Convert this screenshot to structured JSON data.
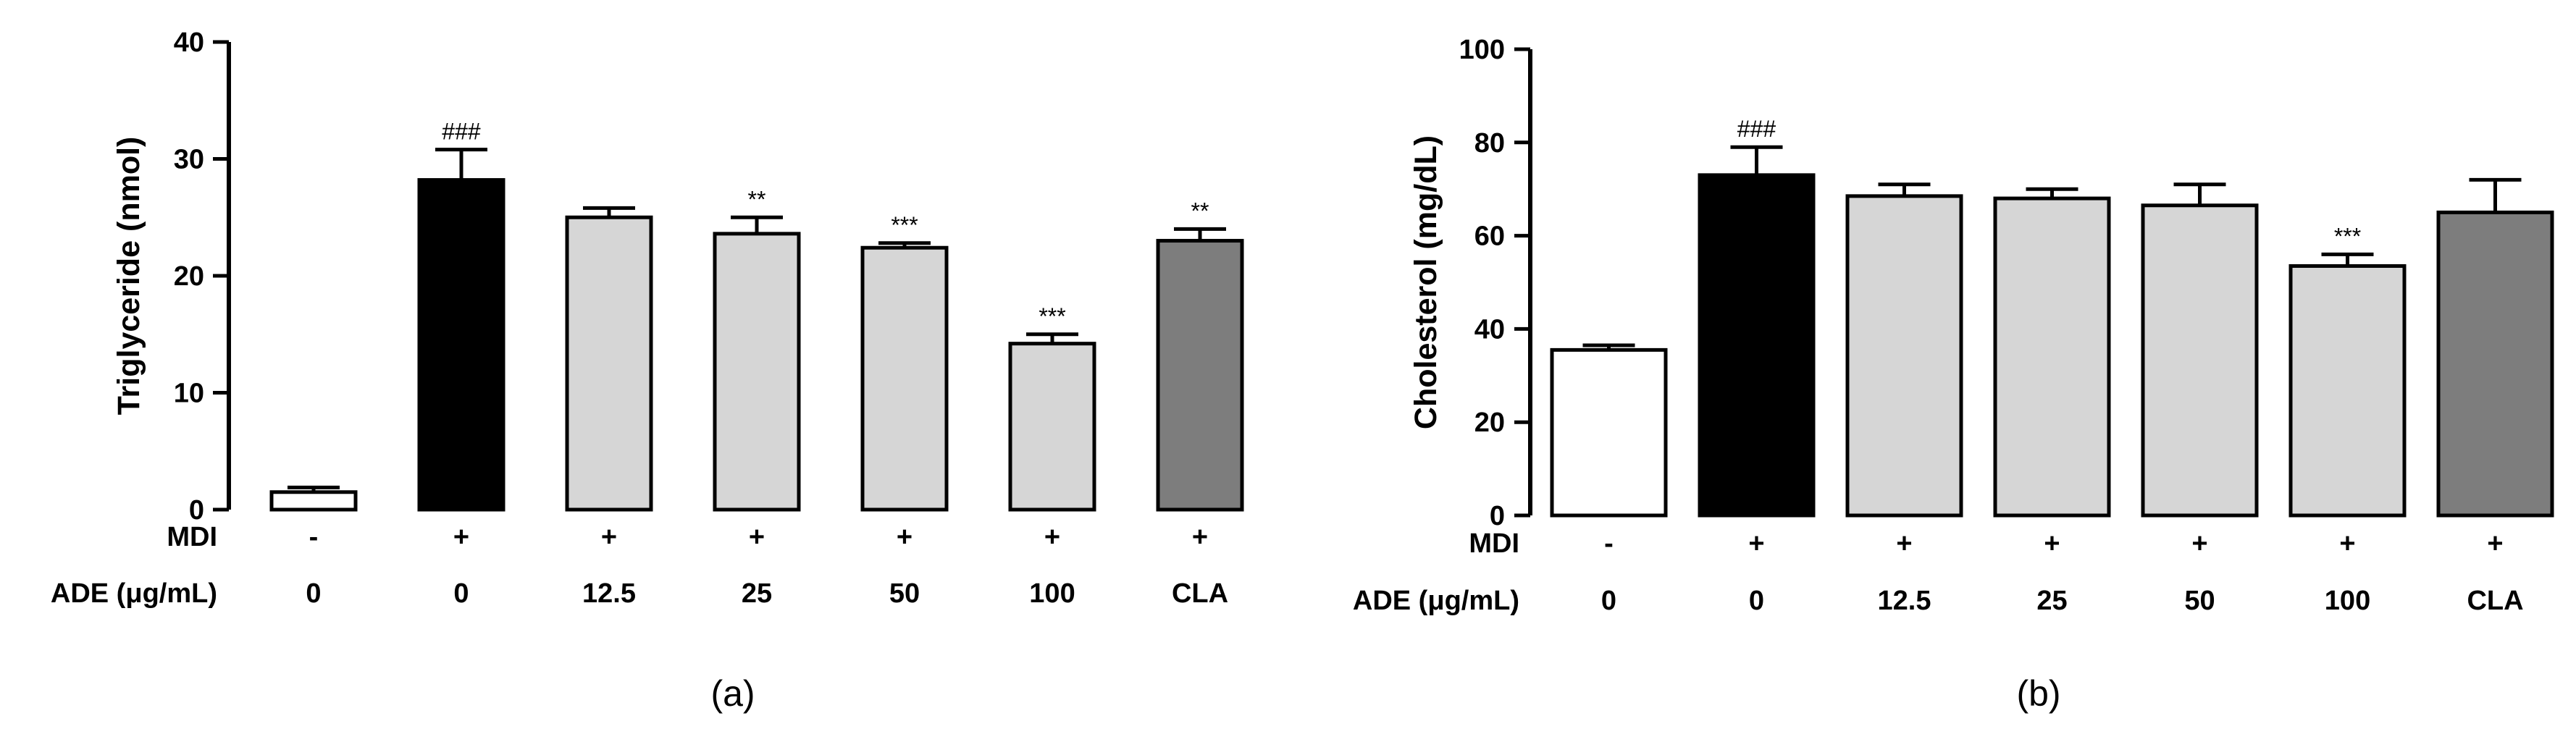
{
  "chart_data": [
    {
      "type": "bar",
      "panel_label": "(a)",
      "ylabel": "Triglyceride (nmol)",
      "ylim": [
        0,
        40
      ],
      "yticks": [
        "0",
        "10",
        "20",
        "30",
        "40"
      ],
      "categories": [
        "0",
        "0",
        "12.5",
        "25",
        "50",
        "100",
        "CLA"
      ],
      "values": [
        1.5,
        28.2,
        25.0,
        23.6,
        22.4,
        14.2,
        23.0
      ],
      "errors": [
        0.4,
        2.6,
        0.8,
        1.4,
        0.4,
        0.8,
        1.0
      ],
      "significance": [
        "",
        "###",
        "",
        "**",
        "***",
        "***",
        "**"
      ],
      "bar_colors": [
        "#ffffff",
        "#000000",
        "#d6d6d6",
        "#d6d6d6",
        "#d6d6d6",
        "#d6d6d6",
        "#7d7d7d"
      ],
      "row_labels": [
        "MDI",
        "ADE (μg/mL)"
      ],
      "mdi": [
        "-",
        "+",
        "+",
        "+",
        "+",
        "+",
        "+"
      ]
    },
    {
      "type": "bar",
      "panel_label": "(b)",
      "ylabel": "Cholesterol (mg/dL)",
      "ylim": [
        0,
        100
      ],
      "yticks": [
        "0",
        "20",
        "40",
        "60",
        "80",
        "100"
      ],
      "categories": [
        "0",
        "0",
        "12.5",
        "25",
        "50",
        "100",
        "CLA"
      ],
      "values": [
        35.5,
        73.0,
        68.5,
        68.0,
        66.5,
        53.5,
        65.0
      ],
      "errors": [
        1.0,
        6.0,
        2.5,
        2.0,
        4.5,
        2.5,
        7.0
      ],
      "significance": [
        "",
        "###",
        "",
        "",
        "",
        "***",
        ""
      ],
      "bar_colors": [
        "#ffffff",
        "#000000",
        "#d6d6d6",
        "#d6d6d6",
        "#d6d6d6",
        "#d6d6d6",
        "#7d7d7d"
      ],
      "row_labels": [
        "MDI",
        "ADE (μg/mL)"
      ],
      "mdi": [
        "-",
        "+",
        "+",
        "+",
        "+",
        "+",
        "+"
      ]
    }
  ]
}
